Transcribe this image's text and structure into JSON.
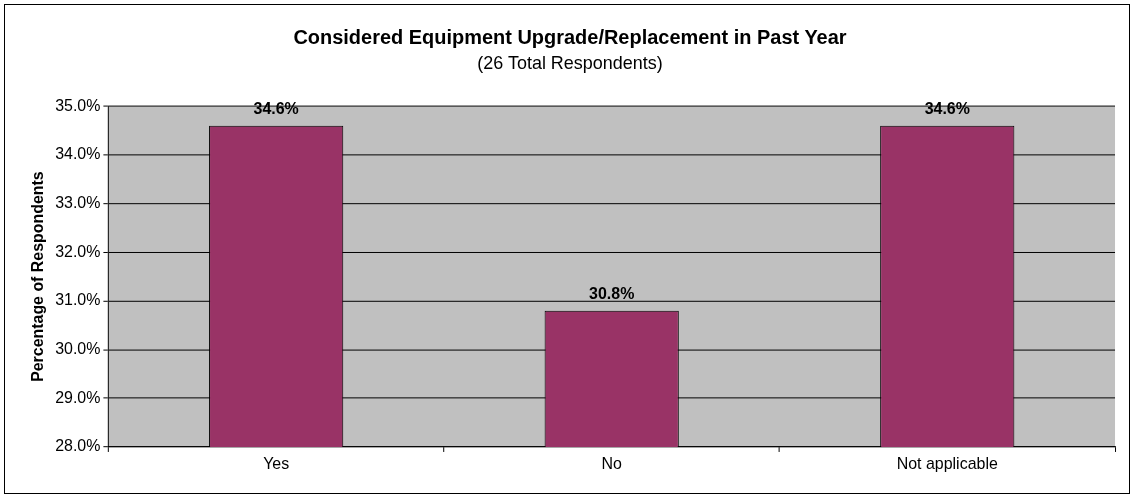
{
  "chart_data": {
    "type": "bar",
    "title": "Considered Equipment Upgrade/Replacement in Past Year",
    "subtitle": "(26 Total Respondents)",
    "ylabel": "Percentage of Respondents",
    "categories": [
      "Yes",
      "No",
      "Not applicable"
    ],
    "values": [
      34.6,
      30.8,
      34.6
    ],
    "value_labels": [
      "34.6%",
      "30.8%",
      "34.6%"
    ],
    "color": "#993366",
    "ylim": [
      28,
      35
    ],
    "yticks": [
      {
        "value": 28,
        "label": "28.0%"
      },
      {
        "value": 29,
        "label": "29.0%"
      },
      {
        "value": 30,
        "label": "30.0%"
      },
      {
        "value": 31,
        "label": "31.0%"
      },
      {
        "value": 32,
        "label": "32.0%"
      },
      {
        "value": 33,
        "label": "33.0%"
      },
      {
        "value": 34,
        "label": "34.0%"
      },
      {
        "value": 35,
        "label": "35.0%"
      }
    ],
    "grid": "y",
    "legend": false
  }
}
